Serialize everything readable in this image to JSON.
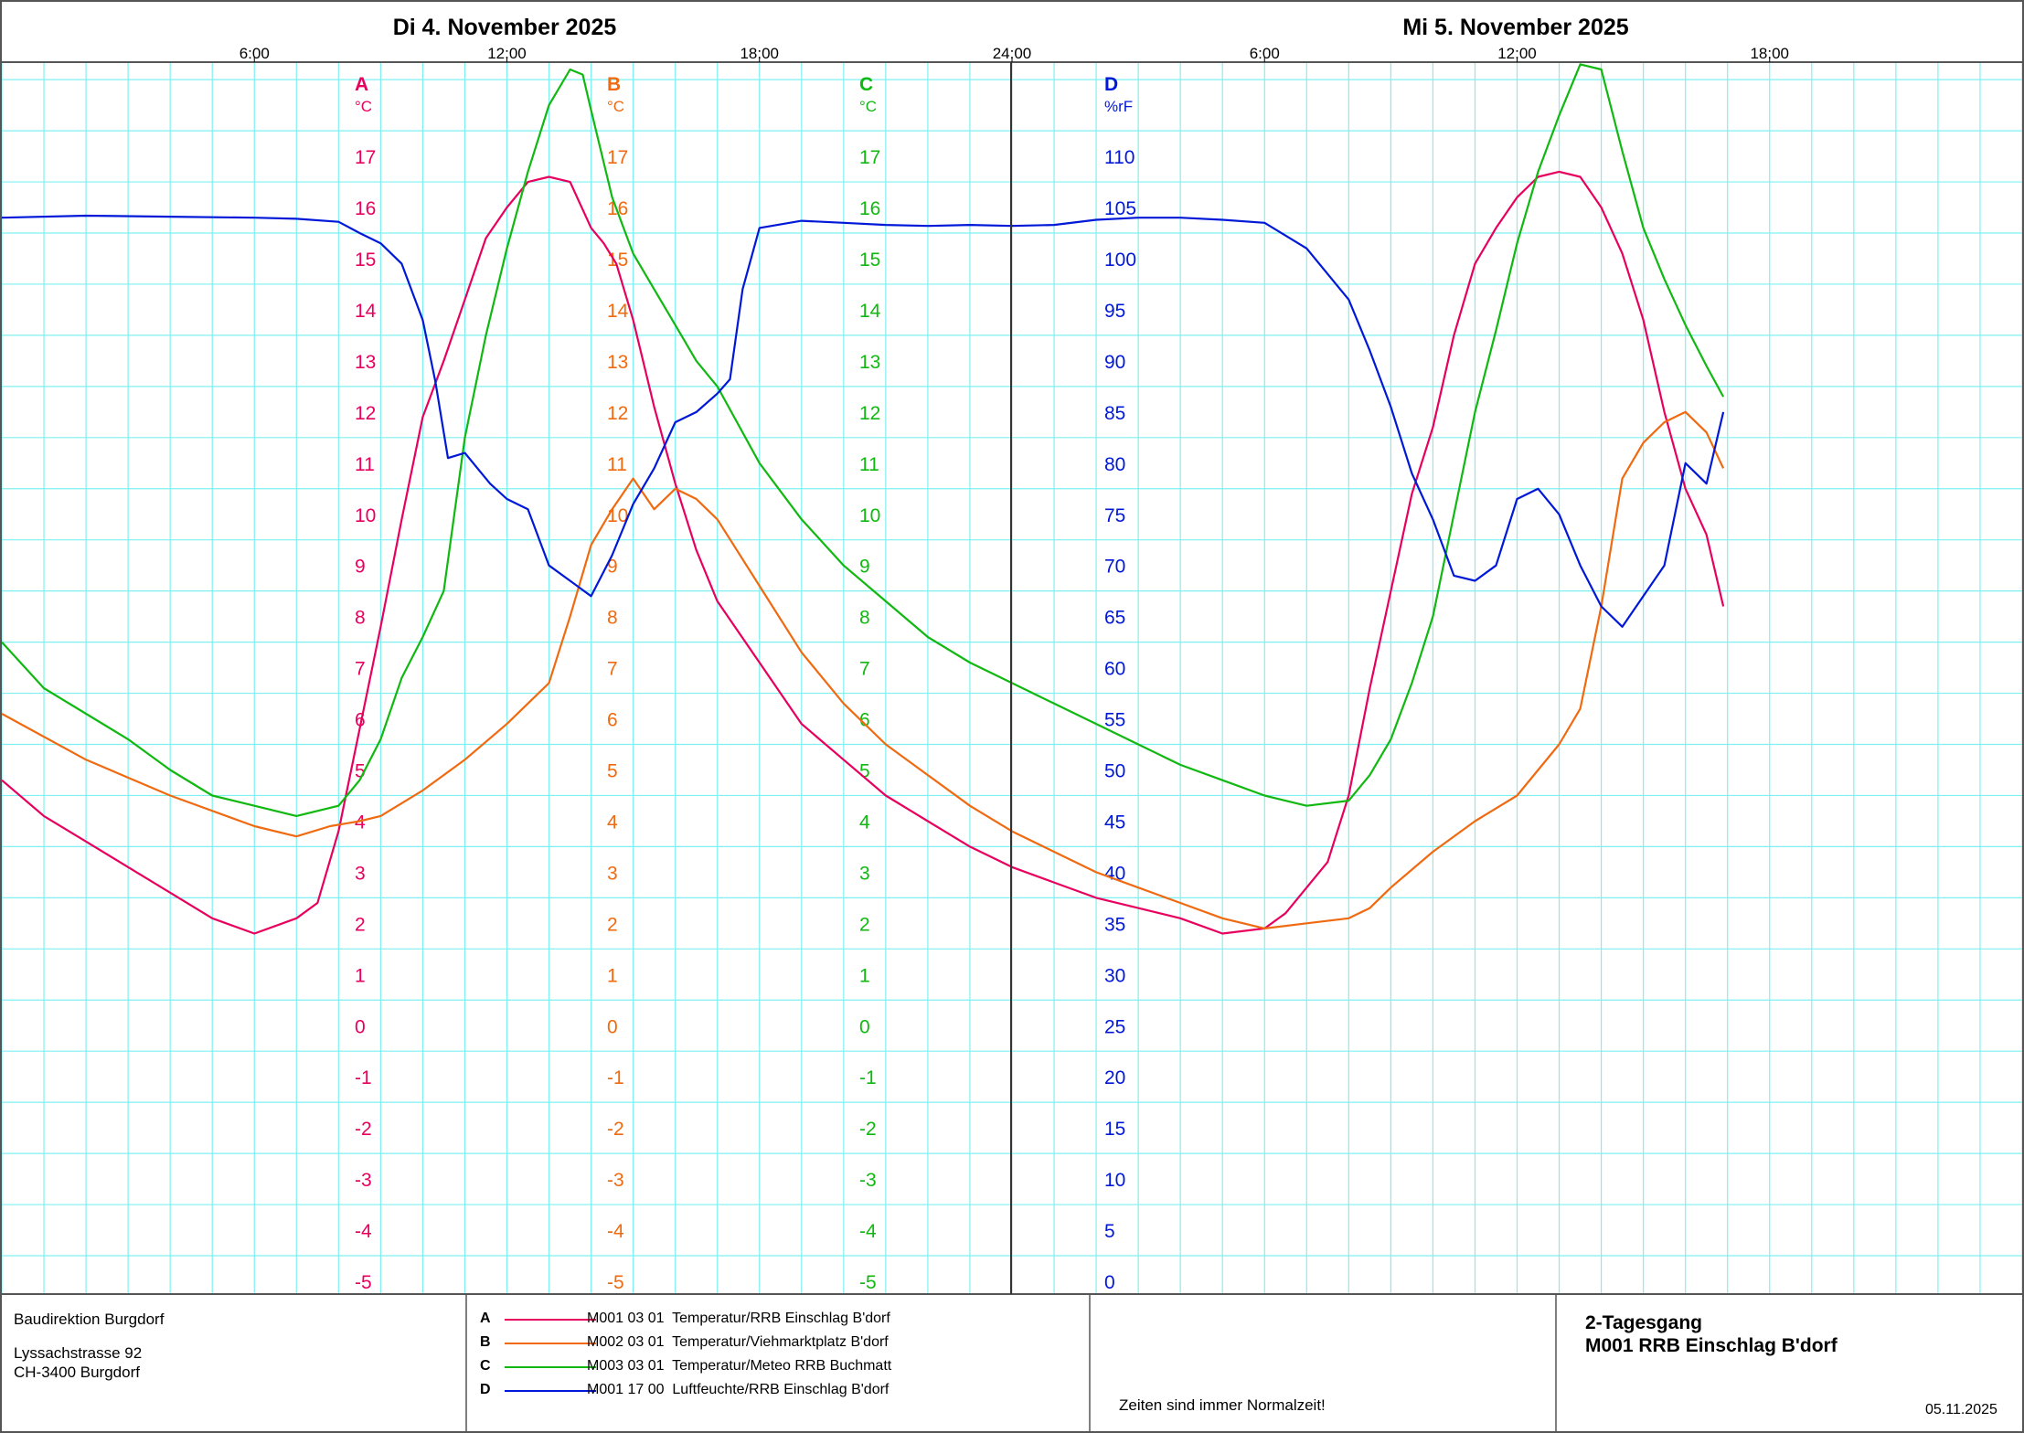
{
  "header": {
    "day1_title": "Di  4. November  2025",
    "day2_title": "Mi  5. November  2025",
    "time_ticks": [
      "6:00",
      "12:00",
      "18:00",
      "24:00",
      "6:00",
      "12:00",
      "18:00"
    ]
  },
  "footer": {
    "org_name": "Baudirektion Burgdorf",
    "address_line1": "Lyssachstrasse 92",
    "address_line2": "CH-3400 Burgdorf",
    "note": "Zeiten sind immer Normalzeit!",
    "report_title_line1": "2-Tagesgang",
    "report_title_line2": "M001 RRB Einschlag B'dorf",
    "date": "05.11.2025"
  },
  "colors": {
    "A": "#e8005e",
    "B": "#ef6a10",
    "C": "#11b811",
    "D": "#0018d8",
    "grid": "#7ff0f0",
    "frame": "#555555"
  },
  "chart_data": {
    "type": "line",
    "x_unit": "hours since 4 Nov 2025 00:00",
    "xlim": [
      0,
      48
    ],
    "grid": true,
    "axes": [
      {
        "key": "A",
        "unit": "°C",
        "ticks": [
          17,
          16,
          15,
          14,
          13,
          12,
          11,
          10,
          9,
          8,
          7,
          6,
          5,
          4,
          3,
          2,
          1,
          0,
          -1,
          -2,
          -3,
          -4,
          -5
        ],
        "ylim": [
          -5,
          19.2
        ]
      },
      {
        "key": "B",
        "unit": "°C",
        "ticks": [
          17,
          16,
          15,
          14,
          13,
          12,
          11,
          10,
          9,
          8,
          7,
          6,
          5,
          4,
          3,
          2,
          1,
          0,
          -1,
          -2,
          -3,
          -4,
          -5
        ],
        "ylim": [
          -5,
          19.2
        ]
      },
      {
        "key": "C",
        "unit": "°C",
        "ticks": [
          17,
          16,
          15,
          14,
          13,
          12,
          11,
          10,
          9,
          8,
          7,
          6,
          5,
          4,
          3,
          2,
          1,
          0,
          -1,
          -2,
          -3,
          -4,
          -5
        ],
        "ylim": [
          -5,
          19.2
        ]
      },
      {
        "key": "D",
        "unit": "%rF",
        "ticks": [
          110,
          105,
          100,
          95,
          90,
          85,
          80,
          75,
          70,
          65,
          60,
          55,
          50,
          45,
          40,
          35,
          30,
          25,
          20,
          15,
          10,
          5,
          0
        ],
        "ylim": [
          0,
          121
        ]
      }
    ],
    "series": [
      {
        "key": "A",
        "name": "M001 03 01  Temperatur/RRB Einschlag B'dorf",
        "axis": "A",
        "x": [
          0,
          1,
          2,
          3,
          4,
          5,
          6,
          7,
          7.5,
          8,
          8.5,
          9,
          9.5,
          10,
          10.5,
          11,
          11.5,
          12,
          12.5,
          13,
          13.5,
          14,
          14.3,
          14.6,
          15,
          15.5,
          16,
          16.5,
          17,
          18,
          19,
          20,
          21,
          22,
          23,
          24,
          25,
          26,
          27,
          28,
          29,
          30,
          30.5,
          31,
          31.5,
          32,
          32.5,
          33,
          33.5,
          34,
          34.5,
          35,
          35.5,
          36,
          36.5,
          37,
          37.5,
          38,
          38.5,
          39,
          39.5,
          40,
          40.5,
          40.9
        ],
        "y": [
          4.8,
          4.1,
          3.6,
          3.1,
          2.6,
          2.1,
          1.8,
          2.1,
          2.4,
          3.8,
          5.8,
          7.8,
          9.9,
          11.9,
          13,
          14.2,
          15.4,
          16,
          16.5,
          16.6,
          16.5,
          15.6,
          15.3,
          14.9,
          13.8,
          12.1,
          10.6,
          9.3,
          8.3,
          7.1,
          5.9,
          5.2,
          4.5,
          4,
          3.5,
          3.1,
          2.8,
          2.5,
          2.3,
          2.1,
          1.8,
          1.9,
          2.2,
          2.7,
          3.2,
          4.5,
          6.6,
          8.5,
          10.4,
          11.7,
          13.5,
          14.9,
          15.6,
          16.2,
          16.6,
          16.7,
          16.6,
          16,
          15.1,
          13.8,
          12,
          10.5,
          9.6,
          8.2
        ]
      },
      {
        "key": "B",
        "name": "M002 03 01  Temperatur/Viehmarktplatz B'dorf",
        "axis": "B",
        "x": [
          0,
          2,
          4,
          6,
          7,
          7.8,
          8.5,
          9,
          10,
          11,
          12,
          13,
          13.5,
          14,
          14.5,
          15,
          15.5,
          16,
          16.5,
          17,
          18,
          19,
          20,
          21,
          22,
          23,
          24,
          25,
          26,
          27,
          28,
          29,
          30,
          31,
          32,
          32.5,
          33,
          34,
          35,
          36,
          37,
          37.5,
          38,
          38.5,
          39,
          39.5,
          40,
          40.5,
          40.9
        ],
        "y": [
          6.1,
          5.2,
          4.5,
          3.9,
          3.7,
          3.9,
          4.0,
          4.1,
          4.6,
          5.2,
          5.9,
          6.7,
          8,
          9.4,
          10.1,
          10.7,
          10.1,
          10.5,
          10.3,
          9.9,
          8.6,
          7.3,
          6.3,
          5.5,
          4.9,
          4.3,
          3.8,
          3.4,
          3,
          2.7,
          2.4,
          2.1,
          1.9,
          2,
          2.1,
          2.3,
          2.7,
          3.4,
          4.0,
          4.5,
          5.5,
          6.2,
          8.2,
          10.7,
          11.4,
          11.8,
          12.0,
          11.6,
          10.9
        ]
      },
      {
        "key": "C",
        "name": "M003 03 01  Temperatur/Meteo RRB Buchmatt",
        "axis": "C",
        "x": [
          0,
          1,
          2,
          3,
          4,
          5,
          6,
          7,
          8,
          8.5,
          9,
          9.5,
          10,
          10.5,
          11,
          11.5,
          12,
          12.5,
          13,
          13.5,
          13.8,
          14,
          14.5,
          15,
          15.5,
          16,
          16.5,
          17,
          18,
          19,
          20,
          21,
          22,
          23,
          24,
          25,
          26,
          27,
          28,
          29,
          30,
          31,
          32,
          32.5,
          33,
          33.5,
          34,
          34.5,
          35,
          35.5,
          36,
          36.5,
          37,
          37.5,
          38,
          38.5,
          39,
          39.5,
          40,
          40.5,
          40.9
        ],
        "y": [
          7.5,
          6.6,
          6.1,
          5.6,
          5.0,
          4.5,
          4.3,
          4.1,
          4.3,
          4.8,
          5.6,
          6.8,
          7.6,
          8.5,
          11.5,
          13.5,
          15.2,
          16.7,
          18,
          18.7,
          18.6,
          17.9,
          16.2,
          15.1,
          14.4,
          13.7,
          13.0,
          12.5,
          11.0,
          9.9,
          9.0,
          8.3,
          7.6,
          7.1,
          6.7,
          6.3,
          5.9,
          5.5,
          5.1,
          4.8,
          4.5,
          4.3,
          4.4,
          4.9,
          5.6,
          6.7,
          8.0,
          10.0,
          12.0,
          13.6,
          15.3,
          16.7,
          17.8,
          18.8,
          18.7,
          17.1,
          15.6,
          14.6,
          13.7,
          12.9,
          12.3
        ]
      },
      {
        "key": "D",
        "name": "M001 17 00  Luftfeuchte/RRB Einschlag B'dorf",
        "axis": "D",
        "x": [
          0,
          2,
          4,
          6,
          7,
          8,
          8.5,
          9,
          9.5,
          10,
          10.3,
          10.6,
          11,
          11.3,
          11.6,
          12,
          12.5,
          13,
          13.5,
          14,
          14.5,
          15,
          15.5,
          16,
          16.5,
          17,
          17.3,
          17.6,
          18,
          19,
          20,
          21,
          22,
          23,
          24,
          25,
          26,
          27,
          28,
          29,
          30,
          31,
          32,
          32.5,
          33,
          33.5,
          34,
          34.5,
          35,
          35.5,
          36,
          36.5,
          37,
          37.5,
          38,
          38.5,
          39,
          39.5,
          40,
          40.5,
          40.9
        ],
        "y": [
          104,
          104.2,
          104.1,
          104,
          103.9,
          103.6,
          102.5,
          101.5,
          99.5,
          94,
          88,
          80.5,
          81,
          79.5,
          78,
          76.5,
          75.5,
          70,
          68.5,
          67,
          71,
          76,
          79.5,
          84,
          85,
          86.8,
          88.2,
          97,
          103,
          103.7,
          103.5,
          103.3,
          103.2,
          103.3,
          103.2,
          103.3,
          103.8,
          104,
          104,
          103.8,
          103.5,
          101,
          96,
          91,
          85.5,
          79,
          74.5,
          69,
          68.5,
          70,
          76.5,
          77.5,
          75,
          70,
          66,
          64,
          67,
          70,
          80,
          78,
          85
        ]
      }
    ]
  }
}
